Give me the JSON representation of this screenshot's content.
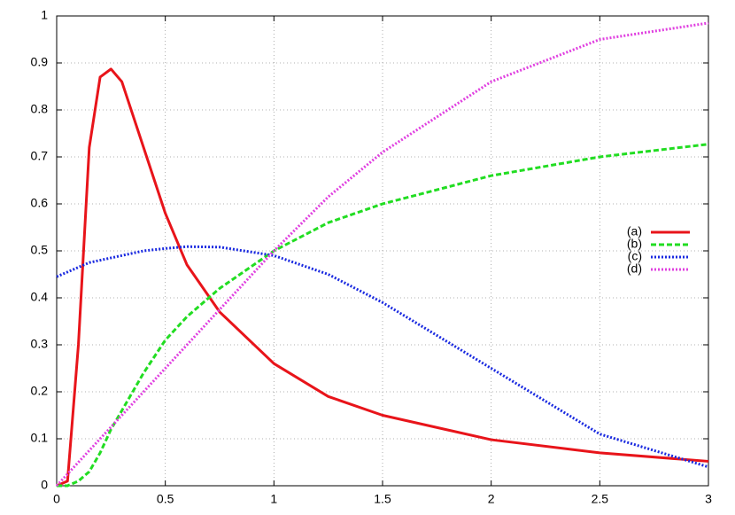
{
  "chart_data": {
    "type": "line",
    "x": [
      0,
      0.05,
      0.1,
      0.15,
      0.2,
      0.25,
      0.3,
      0.4,
      0.5,
      0.6,
      0.75,
      1,
      1.25,
      1.5,
      2,
      2.5,
      3
    ],
    "series": [
      {
        "name": "(a)",
        "color": "#e8141a",
        "dash": "solid",
        "values": [
          0,
          0.01,
          0.3,
          0.72,
          0.87,
          0.887,
          0.86,
          0.72,
          0.58,
          0.47,
          0.37,
          0.26,
          0.19,
          0.15,
          0.098,
          0.07,
          0.052
        ]
      },
      {
        "name": "(b)",
        "color": "#22dd22",
        "dash": "dashed",
        "values": [
          0,
          0,
          0.01,
          0.03,
          0.07,
          0.12,
          0.16,
          0.24,
          0.31,
          0.36,
          0.42,
          0.5,
          0.56,
          0.6,
          0.66,
          0.7,
          0.727
        ]
      },
      {
        "name": "(c)",
        "color": "#1a2ae0",
        "dash": "dotted",
        "values": [
          0.445,
          0.455,
          0.465,
          0.475,
          0.48,
          0.485,
          0.49,
          0.5,
          0.505,
          0.509,
          0.508,
          0.49,
          0.45,
          0.39,
          0.25,
          0.11,
          0.04
        ]
      },
      {
        "name": "(d)",
        "color": "#e040e0",
        "dash": "dotted",
        "values": [
          0,
          0.025,
          0.05,
          0.075,
          0.1,
          0.125,
          0.15,
          0.2,
          0.25,
          0.3,
          0.375,
          0.5,
          0.615,
          0.71,
          0.86,
          0.95,
          0.985
        ]
      }
    ],
    "xlim": [
      0,
      3
    ],
    "xticks": [
      0,
      0.5,
      1,
      1.5,
      2,
      2.5,
      3
    ],
    "ylim": [
      0,
      1
    ],
    "yticks": [
      0,
      0.1,
      0.2,
      0.3,
      0.4,
      0.5,
      0.6,
      0.7,
      0.8,
      0.9,
      1
    ],
    "grid": true,
    "legend": "right"
  }
}
